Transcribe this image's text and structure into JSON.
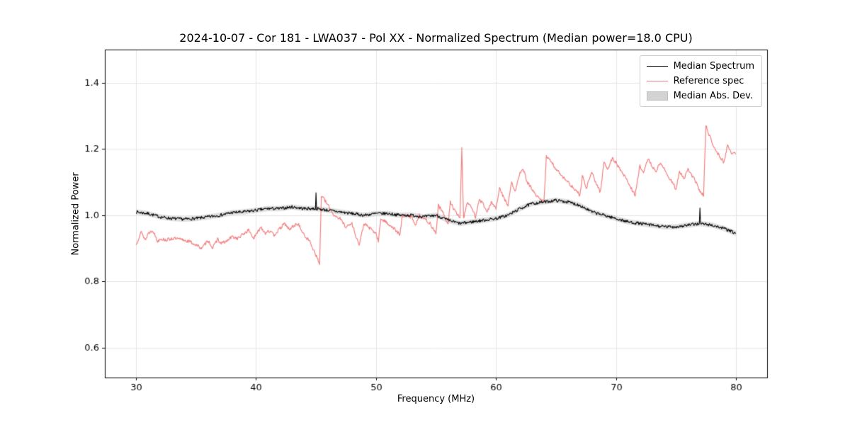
{
  "chart_data": {
    "type": "line",
    "title": "2024-10-07 - Cor 181 - LWA037 - Pol XX - Normalized Spectrum (Median power=18.0 CPU)",
    "xlabel": "Frequency (MHz)",
    "ylabel": "Normalized Power",
    "xlim": [
      27.4,
      82.6
    ],
    "ylim": [
      0.51,
      1.5
    ],
    "xticks": [
      30,
      40,
      50,
      60,
      70,
      80
    ],
    "yticks": [
      0.6,
      0.8,
      1.0,
      1.2,
      1.4
    ],
    "grid": true,
    "legend": {
      "position": "upper right",
      "entries": [
        {
          "label": "Median Spectrum",
          "color": "#000000",
          "type": "line"
        },
        {
          "label": "Reference spec",
          "color": "#f08080",
          "type": "line"
        },
        {
          "label": "Median Abs. Dev.",
          "color": "#d3d3d3",
          "type": "patch"
        }
      ]
    },
    "series": [
      {
        "name": "Median Spectrum",
        "color": "#000000",
        "linewidth": 1.1,
        "noise": 0.0045,
        "seed": 7,
        "x": [
          30,
          31,
          32,
          33,
          34,
          35,
          36,
          37,
          38,
          39,
          40,
          41,
          42,
          43,
          44,
          45,
          46,
          47,
          48,
          49,
          50,
          51,
          52,
          53,
          54,
          55,
          56,
          57,
          58,
          59,
          60,
          61,
          62,
          63,
          64,
          65,
          66,
          67,
          68,
          69,
          70,
          71,
          72,
          73,
          74,
          75,
          76,
          77,
          78,
          79,
          80
        ],
        "y": [
          1.01,
          1.005,
          0.995,
          0.99,
          0.988,
          0.99,
          0.995,
          1.0,
          1.008,
          1.01,
          1.015,
          1.02,
          1.02,
          1.025,
          1.02,
          1.02,
          1.015,
          1.01,
          1.005,
          1.0,
          1.005,
          1.005,
          1.0,
          1.0,
          0.995,
          1.0,
          0.985,
          0.975,
          0.98,
          0.985,
          0.99,
          1.0,
          1.02,
          1.035,
          1.04,
          1.045,
          1.04,
          1.03,
          1.01,
          1.0,
          0.99,
          0.98,
          0.975,
          0.97,
          0.965,
          0.965,
          0.97,
          0.975,
          0.97,
          0.96,
          0.945
        ],
        "spikes": [
          {
            "x": 45.0,
            "y": 1.068
          },
          {
            "x": 77.0,
            "y": 1.022
          }
        ],
        "band": {
          "name": "Median Abs. Dev.",
          "dev": 0.008,
          "color": "#d3d3d3",
          "alpha": 0.7
        }
      },
      {
        "name": "Reference spec",
        "color": "#f08080",
        "linewidth": 1.2,
        "noise": 0.005,
        "seed": 13,
        "x": [
          30,
          30.4,
          30.8,
          31,
          31.4,
          31.8,
          32,
          32.5,
          33,
          33.5,
          34,
          34.5,
          35,
          35.5,
          36,
          36.4,
          36.8,
          37,
          37.5,
          38,
          38.5,
          39,
          39.4,
          39.8,
          40,
          40.4,
          40.8,
          41,
          41.5,
          42,
          42.4,
          42.8,
          43,
          43.5,
          44,
          44.5,
          45,
          45.3,
          45.45,
          46,
          46.5,
          47,
          47.5,
          48,
          48.3,
          48.6,
          49,
          49.5,
          50,
          50.2,
          50.4,
          51,
          51.5,
          52,
          52.2,
          53,
          53.3,
          53.6,
          54,
          54.5,
          55,
          55.2,
          55.7,
          56,
          56.2,
          56.6,
          57,
          57.15,
          57.3,
          57.6,
          58,
          58.3,
          58.6,
          59,
          59.3,
          59.6,
          60,
          60.3,
          60.7,
          61,
          61.3,
          61.6,
          62,
          62.3,
          62.6,
          63,
          63.3,
          63.6,
          64,
          64.2,
          64.6,
          65,
          65.5,
          66,
          66.5,
          67,
          67.2,
          67.5,
          68,
          68.3,
          68.7,
          69,
          69.3,
          69.7,
          70,
          70.3,
          70.7,
          71,
          71.3,
          71.6,
          72,
          72.3,
          72.7,
          73,
          73.3,
          73.7,
          74,
          74.3,
          74.7,
          75,
          75.3,
          75.7,
          76,
          76.3,
          76.7,
          77,
          77.3,
          77.5,
          77.8,
          78,
          78.3,
          78.6,
          79,
          79.3,
          79.6,
          80
        ],
        "y": [
          0.91,
          0.95,
          0.925,
          0.945,
          0.955,
          0.92,
          0.93,
          0.925,
          0.93,
          0.928,
          0.925,
          0.92,
          0.91,
          0.9,
          0.925,
          0.9,
          0.93,
          0.915,
          0.92,
          0.935,
          0.93,
          0.945,
          0.955,
          0.93,
          0.94,
          0.965,
          0.945,
          0.955,
          0.94,
          0.96,
          0.975,
          0.955,
          0.965,
          0.975,
          0.94,
          0.92,
          0.88,
          0.852,
          1.06,
          1.03,
          1.0,
          0.99,
          0.965,
          0.975,
          0.94,
          0.91,
          0.975,
          0.96,
          0.945,
          0.92,
          0.99,
          0.975,
          0.96,
          0.94,
          1.0,
          0.995,
          0.97,
          1.0,
          0.99,
          0.975,
          0.945,
          1.03,
          1.0,
          0.97,
          1.04,
          1.01,
          0.995,
          1.2,
          0.99,
          1.04,
          1.02,
          0.995,
          1.05,
          1.03,
          1.01,
          1.04,
          1.02,
          1.08,
          1.05,
          1.03,
          1.1,
          1.07,
          1.13,
          1.135,
          1.1,
          1.08,
          1.06,
          1.05,
          1.04,
          1.18,
          1.16,
          1.14,
          1.12,
          1.1,
          1.08,
          1.06,
          1.12,
          1.08,
          1.13,
          1.1,
          1.07,
          1.16,
          1.14,
          1.17,
          1.16,
          1.14,
          1.12,
          1.1,
          1.08,
          1.06,
          1.15,
          1.13,
          1.17,
          1.15,
          1.13,
          1.16,
          1.14,
          1.12,
          1.1,
          1.08,
          1.13,
          1.11,
          1.14,
          1.12,
          1.1,
          1.07,
          1.06,
          1.27,
          1.24,
          1.22,
          1.2,
          1.18,
          1.16,
          1.21,
          1.19,
          1.185
        ],
        "spikes": []
      }
    ]
  }
}
